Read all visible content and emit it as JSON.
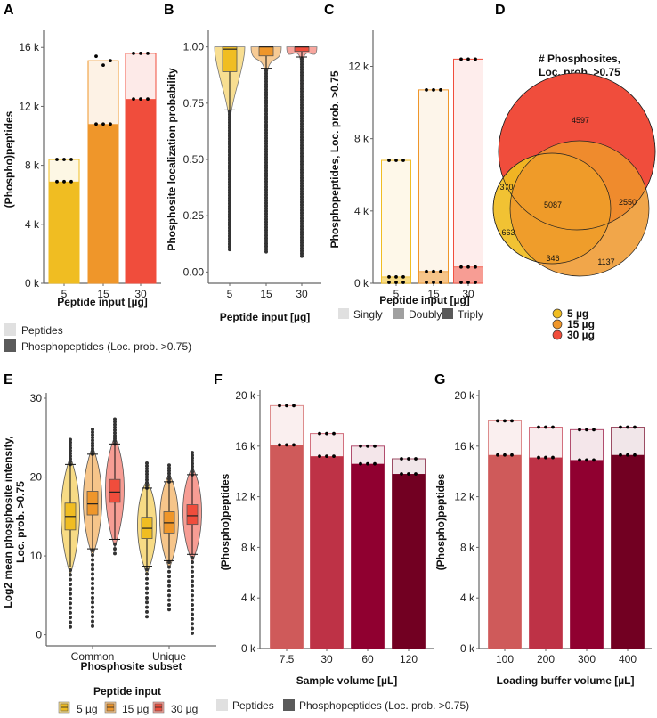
{
  "panel_labels": {
    "a": "A",
    "b": "B",
    "c": "C",
    "d": "D",
    "e": "E",
    "f": "F",
    "g": "G"
  },
  "colors": {
    "input_5": "#f0bd22",
    "input_15": "#ef962a",
    "input_30": "#f04d3c",
    "vol_1": "#cf5a5a",
    "vol_2": "#be3246",
    "vol_3": "#900030",
    "vol_4": "#720022",
    "legend_light": "#e0e0e0",
    "legend_mid": "#a0a0a0",
    "legend_dark": "#5a5a5a"
  },
  "legends": {
    "ab_peptides": "Peptides",
    "ab_phospho": "Phosphopeptides (Loc. prob. >0.75)",
    "c_singly": "Singly",
    "c_doubly": "Doubly",
    "c_triply": "Triply",
    "d_5": "5 µg",
    "d_15": "15 µg",
    "d_30": "30 µg",
    "e_title": "Peptide input",
    "e_5": "5 µg",
    "e_15": "15 µg",
    "e_30": "30 µg",
    "fg_peptides": "Peptides",
    "fg_phospho": "Phosphopeptides (Loc. prob. >0.75)"
  },
  "chart_data": [
    {
      "id": "A",
      "type": "bar",
      "stacked_overlay": true,
      "title": "",
      "xlabel": "Peptide input [µg]",
      "ylabel": "(Phospho)peptides",
      "categories": [
        "5",
        "15",
        "30"
      ],
      "yticks": [
        "0 k",
        "4 k",
        "8 k",
        "12 k",
        "16 k"
      ],
      "ylim": [
        0,
        16800
      ],
      "series": [
        {
          "name": "Peptides",
          "values": [
            8400,
            15100,
            15600
          ],
          "replicates": [
            [
              8400,
              8400,
              8400
            ],
            [
              15400,
              14800,
              15100
            ],
            [
              15600,
              15600,
              15600
            ]
          ]
        },
        {
          "name": "Phosphopeptides (Loc. prob. >0.75)",
          "values": [
            6900,
            10800,
            12500
          ],
          "replicates": [
            [
              6900,
              6900,
              6900
            ],
            [
              10800,
              10800,
              10800
            ],
            [
              12500,
              12500,
              12500
            ]
          ]
        }
      ]
    },
    {
      "id": "B",
      "type": "violin",
      "xlabel": "Peptide input [µg]",
      "ylabel": "Phosphosite localization probability",
      "categories": [
        "5",
        "15",
        "30"
      ],
      "yticks": [
        "0.00",
        "0.25",
        "0.50",
        "0.75",
        "1.00"
      ],
      "ylim": [
        -0.05,
        1.05
      ],
      "box": [
        {
          "q1": 0.89,
          "median": 0.99,
          "q3": 1.0,
          "whisker_low": 0.72,
          "whisker_high": 1.0,
          "outlier_min": 0.1
        },
        {
          "q1": 0.96,
          "median": 1.0,
          "q3": 1.0,
          "whisker_low": 0.905,
          "whisker_high": 1.0,
          "outlier_min": 0.09
        },
        {
          "q1": 0.98,
          "median": 1.0,
          "q3": 1.0,
          "whisker_low": 0.955,
          "whisker_high": 1.0,
          "outlier_min": 0.07
        }
      ]
    },
    {
      "id": "C",
      "type": "bar",
      "stacked": true,
      "xlabel": "Peptide input [µg]",
      "ylabel": "Phosphopeptides, Loc. prob. >0.75",
      "categories": [
        "5",
        "15",
        "30"
      ],
      "yticks": [
        "0 k",
        "4 k",
        "8 k",
        "12 k"
      ],
      "ylim": [
        0,
        14000
      ],
      "series": [
        {
          "name": "Triply",
          "values": [
            0,
            0,
            0
          ]
        },
        {
          "name": "Doubly",
          "values": [
            350,
            650,
            900
          ]
        },
        {
          "name": "Singly",
          "values": [
            6450,
            10050,
            11500
          ]
        }
      ],
      "totals": [
        6800,
        10700,
        12400
      ]
    },
    {
      "id": "D",
      "type": "venn",
      "title": "# Phosphosites,\nLoc. prob. >0.75",
      "title_lines": [
        "# Phosphosites,",
        "Loc. prob. >0.75"
      ],
      "sets": [
        "5 µg",
        "15 µg",
        "30 µg"
      ],
      "regions": {
        "30_only": 4597,
        "5_15_30": 5087,
        "15_30": 2550,
        "5_30": 370,
        "5_only": 663,
        "5_15": 346,
        "15_only": 1137
      }
    },
    {
      "id": "E",
      "type": "violin",
      "xlabel": "Phosphosite subset",
      "ylabel": "Log2 mean phosphosite intensity, Loc. prob. >0.75",
      "ylabel_lines": [
        "Log2 mean phosphosite intensity,",
        "Loc. prob. >0.75"
      ],
      "categories": [
        "Common",
        "Unique"
      ],
      "groups": [
        "5 µg",
        "15 µg",
        "30 µg"
      ],
      "yticks": [
        "0",
        "10",
        "20",
        "30"
      ],
      "ylim": [
        -1.5,
        30
      ],
      "box": [
        [
          {
            "q1": 13.3,
            "median": 15.0,
            "q3": 16.7,
            "whisker_low": 8.6,
            "whisker_high": 21.6,
            "min": 1.0,
            "max": 25.0
          },
          {
            "q1": 15.2,
            "median": 16.6,
            "q3": 18.2,
            "whisker_low": 10.9,
            "whisker_high": 22.9,
            "min": 1.1,
            "max": 26.1
          },
          {
            "q1": 16.8,
            "median": 18.1,
            "q3": 19.7,
            "whisker_low": 12.1,
            "whisker_high": 24.2,
            "min": 10.3,
            "max": 27.5
          }
        ],
        [
          {
            "q1": 12.2,
            "median": 13.5,
            "q3": 14.9,
            "whisker_low": 8.7,
            "whisker_high": 18.6,
            "min": 2.3,
            "max": 21.9
          },
          {
            "q1": 12.9,
            "median": 14.2,
            "q3": 15.6,
            "whisker_low": 9.4,
            "whisker_high": 19.4,
            "min": 3.2,
            "max": 21.8
          },
          {
            "q1": 14.0,
            "median": 15.1,
            "q3": 16.5,
            "whisker_low": 10.2,
            "whisker_high": 20.3,
            "min": 0.2,
            "max": 23.3
          }
        ]
      ]
    },
    {
      "id": "F",
      "type": "bar",
      "stacked_overlay": true,
      "xlabel": "Sample volume [µL]",
      "ylabel": "(Phospho)peptides",
      "categories": [
        "7.5",
        "30",
        "60",
        "120"
      ],
      "yticks": [
        "0 k",
        "4 k",
        "8 k",
        "12 k",
        "16 k",
        "20 k"
      ],
      "ylim": [
        0,
        20000
      ],
      "series": [
        {
          "name": "Peptides",
          "values": [
            19200,
            17000,
            16000,
            15000
          ]
        },
        {
          "name": "Phosphopeptides (Loc. prob. >0.75)",
          "values": [
            16100,
            15200,
            14600,
            13800
          ]
        }
      ]
    },
    {
      "id": "G",
      "type": "bar",
      "stacked_overlay": true,
      "xlabel": "Loading buffer volume [µL]",
      "ylabel": "(Phospho)peptides",
      "categories": [
        "100",
        "200",
        "300",
        "400"
      ],
      "yticks": [
        "0 k",
        "4 k",
        "8 k",
        "12 k",
        "16 k",
        "20 k"
      ],
      "ylim": [
        0,
        20000
      ],
      "series": [
        {
          "name": "Peptides",
          "values": [
            18000,
            17500,
            17300,
            17500
          ]
        },
        {
          "name": "Phosphopeptides (Loc. prob. >0.75)",
          "values": [
            15300,
            15100,
            14900,
            15300
          ]
        }
      ]
    }
  ]
}
